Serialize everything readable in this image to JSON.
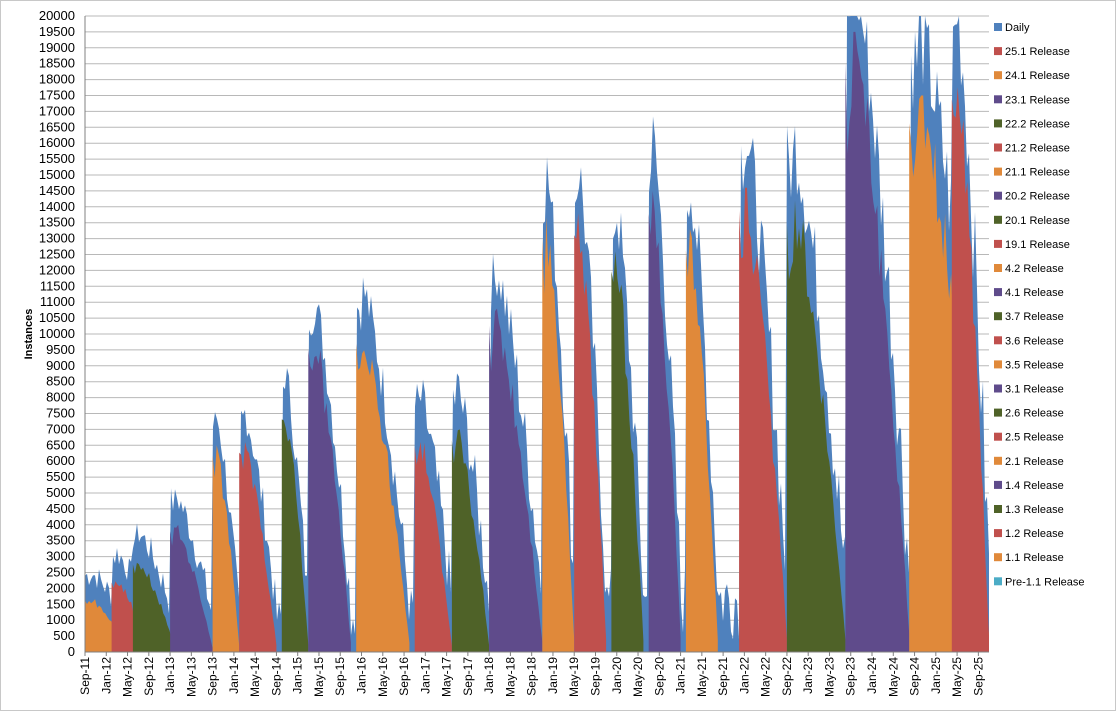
{
  "chart_data": {
    "type": "area",
    "stacked": true,
    "title": "",
    "xlabel": "",
    "ylabel": "Instances",
    "ylim": [
      0,
      20000
    ],
    "ytick_step": 500,
    "grid": true,
    "legend_position": "right",
    "x_ticks": [
      "Sep-11",
      "Jan-12",
      "May-12",
      "Sep-12",
      "Jan-13",
      "May-13",
      "Sep-13",
      "Jan-14",
      "May-14",
      "Sep-14",
      "Jan-15",
      "May-15",
      "Sep-15",
      "Jan-16",
      "May-16",
      "Sep-16",
      "Jan-17",
      "May-17",
      "Sep-17",
      "Jan-18",
      "May-18",
      "Sep-18",
      "Jan-19",
      "May-19",
      "Sep-19",
      "Jan-20",
      "May-20",
      "Sep-20",
      "Jan-21",
      "May-21",
      "Sep-21",
      "Jan-22",
      "May-22",
      "Sep-22",
      "Jan-23",
      "May-23",
      "Sep-23",
      "Jan-24",
      "May-24",
      "Sep-24",
      "Jan-25",
      "May-25",
      "Sep-25"
    ],
    "x_range": [
      "Sep-11",
      "Nov-25"
    ],
    "legend_order": [
      "Daily",
      "25.1 Release",
      "24.1 Release",
      "23.1 Release",
      "22.2 Release",
      "21.2 Release",
      "21.1 Release",
      "20.2 Release",
      "20.1 Release",
      "19.1 Release",
      "4.2 Release",
      "4.1 Release",
      "3.7 Release",
      "3.6 Release",
      "3.5 Release",
      "3.1 Release",
      "2.6 Release",
      "2.5 Release",
      "2.1 Release",
      "1.4 Release",
      "1.3 Release",
      "1.2 Release",
      "1.1 Release",
      "Pre-1.1 Release"
    ],
    "colors": {
      "Daily": "#4f81bd",
      "red": "#c0504d",
      "orange": "#e0893a",
      "purple": "#5f4b8b",
      "green": "#4f6228",
      "teal": "#4bacc6"
    },
    "series": [
      {
        "name": "Pre-1.1 Release",
        "color": "#4bacc6",
        "start": "Sep-11",
        "peak": 150,
        "end": "Jan-12"
      },
      {
        "name": "1.1 Release",
        "color": "#e0893a",
        "start": "Sep-11",
        "peak": 1700,
        "end": "May-12"
      },
      {
        "name": "1.2 Release",
        "color": "#c0504d",
        "start": "Feb-12",
        "peak": 2300,
        "end": "Sep-12"
      },
      {
        "name": "1.3 Release",
        "color": "#4f6228",
        "start": "Jun-12",
        "peak": 2900,
        "end": "Feb-13"
      },
      {
        "name": "1.4 Release",
        "color": "#5f4b8b",
        "start": "Jan-13",
        "peak": 4000,
        "end": "Sep-13"
      },
      {
        "name": "2.1 Release",
        "color": "#e0893a",
        "start": "Sep-13",
        "peak": 6500,
        "end": "Feb-14"
      },
      {
        "name": "2.5 Release",
        "color": "#c0504d",
        "start": "Feb-14",
        "peak": 6600,
        "end": "Sep-14"
      },
      {
        "name": "2.6 Release",
        "color": "#4f6228",
        "start": "Oct-14",
        "peak": 7700,
        "end": "Mar-15"
      },
      {
        "name": "3.1 Release",
        "color": "#5f4b8b",
        "start": "Mar-15",
        "peak": 10000,
        "end": "Nov-15"
      },
      {
        "name": "3.5 Release",
        "color": "#e0893a",
        "start": "Dec-15",
        "peak": 10200,
        "end": "Oct-16"
      },
      {
        "name": "3.6 Release",
        "color": "#c0504d",
        "start": "Nov-16",
        "peak": 6800,
        "end": "Jun-17"
      },
      {
        "name": "3.7 Release",
        "color": "#4f6228",
        "start": "Jun-17",
        "peak": 7000,
        "end": "Jan-18"
      },
      {
        "name": "4.1 Release",
        "color": "#5f4b8b",
        "start": "Jan-18",
        "peak": 10800,
        "end": "Nov-18"
      },
      {
        "name": "4.2 Release",
        "color": "#e0893a",
        "start": "Nov-18",
        "peak": 13700,
        "end": "May-19"
      },
      {
        "name": "19.1 Release",
        "color": "#c0504d",
        "start": "May-19",
        "peak": 13800,
        "end": "Nov-19"
      },
      {
        "name": "20.1 Release",
        "color": "#4f6228",
        "start": "Dec-19",
        "peak": 12600,
        "end": "Jun-20"
      },
      {
        "name": "20.2 Release",
        "color": "#5f4b8b",
        "start": "Jul-20",
        "peak": 14500,
        "end": "Jan-21"
      },
      {
        "name": "21.1 Release",
        "color": "#e0893a",
        "start": "Feb-21",
        "peak": 13300,
        "end": "Aug-21"
      },
      {
        "name": "21.2 Release",
        "color": "#c0504d",
        "start": "Dec-21",
        "peak": 14600,
        "end": "Sep-22"
      },
      {
        "name": "22.2 Release",
        "color": "#4f6228",
        "start": "Sep-22",
        "peak": 14200,
        "end": "Aug-23"
      },
      {
        "name": "23.1 Release",
        "color": "#5f4b8b",
        "start": "Aug-23",
        "peak": 19500,
        "end": "Aug-24"
      },
      {
        "name": "24.1 Release",
        "color": "#e0893a",
        "start": "Aug-24",
        "peak": 17500,
        "end": "Nov-25"
      },
      {
        "name": "25.1 Release",
        "color": "#c0504d",
        "start": "Apr-25",
        "peak": 18300,
        "end": "Nov-25"
      },
      {
        "name": "Daily",
        "color": "#4f81bd",
        "start": "Sep-11",
        "peak": 20000,
        "end": "Nov-25"
      }
    ]
  }
}
